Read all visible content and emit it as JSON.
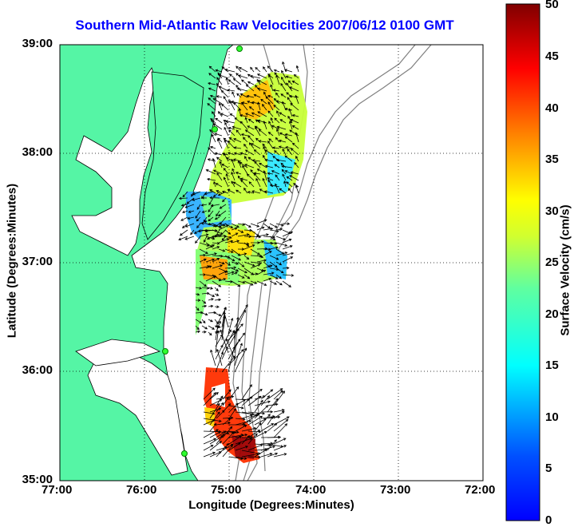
{
  "title": "Southern Mid-Atlantic Raw Velocities 2007/06/12 0100 GMT",
  "x_axis": {
    "label": "Longitude (Degrees:Minutes)",
    "ticks": [
      "77:00",
      "76:00",
      "75:00",
      "74:00",
      "73:00",
      "72:00"
    ]
  },
  "y_axis": {
    "label": "Latitude (Degrees:Minutes)",
    "ticks": [
      "39:00",
      "38:00",
      "37:00",
      "36:00",
      "35:00"
    ]
  },
  "colorbar": {
    "label": "Surface Velocity (cm/s)",
    "ticks": [
      "50",
      "45",
      "40",
      "35",
      "30",
      "25",
      "20",
      "15",
      "10",
      "5",
      "0"
    ],
    "range": [
      0,
      50
    ],
    "colormap": "jet"
  },
  "map": {
    "lon_range": [
      -77,
      -72
    ],
    "lat_range": [
      35,
      39
    ],
    "land_color": "#55f5a5",
    "ocean_color": "#ffffff",
    "bathymetry_color": "#808080",
    "grid": "dotted"
  }
}
